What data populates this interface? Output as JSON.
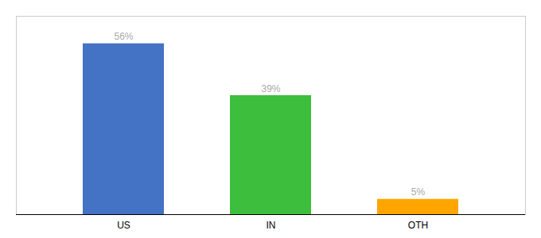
{
  "chart_data": {
    "type": "bar",
    "categories": [
      "US",
      "IN",
      "OTH"
    ],
    "values": [
      56,
      39,
      5
    ],
    "value_labels": [
      "56%",
      "39%",
      "5%"
    ],
    "colors": [
      "#4472C4",
      "#3DBE3D",
      "#FFA500"
    ],
    "ylim": [
      0,
      65
    ],
    "yticks": [],
    "data_labels": true,
    "tick_labels": "x",
    "grid": false
  }
}
